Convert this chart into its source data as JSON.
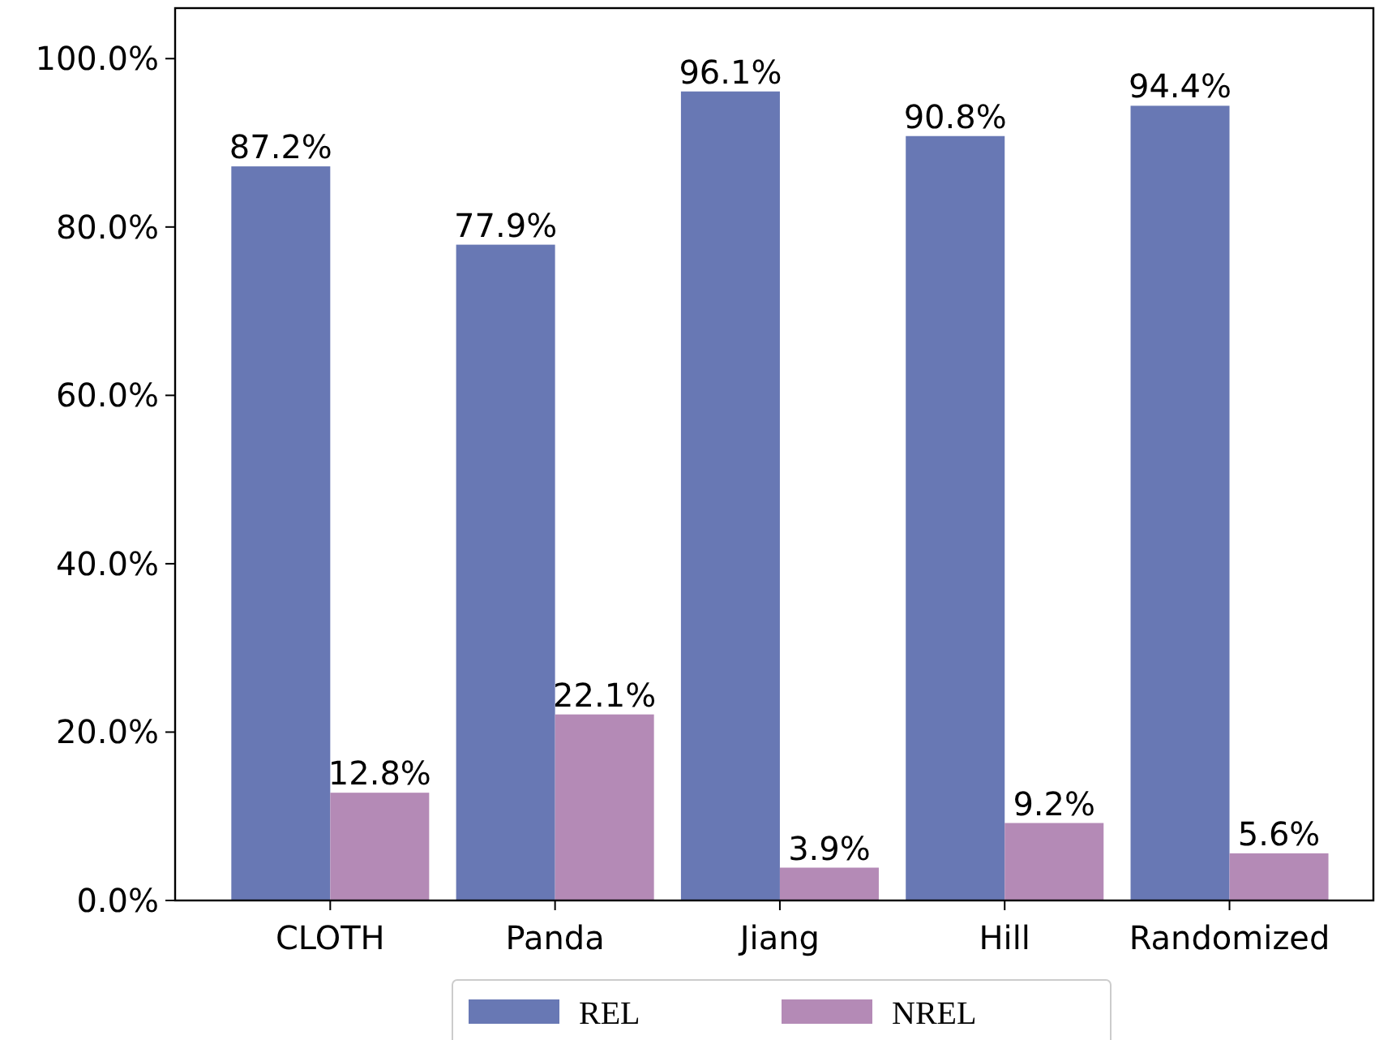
{
  "chart_data": {
    "type": "bar",
    "categories": [
      "CLOTH",
      "Panda",
      "Jiang",
      "Hill",
      "Randomized"
    ],
    "series": [
      {
        "name": "REL",
        "color": "#6878b4",
        "values": [
          87.2,
          77.9,
          96.1,
          90.8,
          94.4
        ],
        "value_labels": [
          "87.2%",
          "77.9%",
          "96.1%",
          "90.8%",
          "94.4%"
        ]
      },
      {
        "name": "NREL",
        "color": "#b48ab6",
        "values": [
          12.8,
          22.1,
          3.9,
          9.2,
          5.6
        ],
        "value_labels": [
          "12.8%",
          "22.1%",
          "3.9%",
          "9.2%",
          "5.6%"
        ]
      }
    ],
    "ylim": [
      0,
      106
    ],
    "yticks": [
      {
        "value": 0,
        "label": "0.0%"
      },
      {
        "value": 20,
        "label": "20.0%"
      },
      {
        "value": 40,
        "label": "40.0%"
      },
      {
        "value": 60,
        "label": "60.0%"
      },
      {
        "value": 80,
        "label": "80.0%"
      },
      {
        "value": 100,
        "label": "100.0%"
      }
    ],
    "legend": "bottom"
  }
}
